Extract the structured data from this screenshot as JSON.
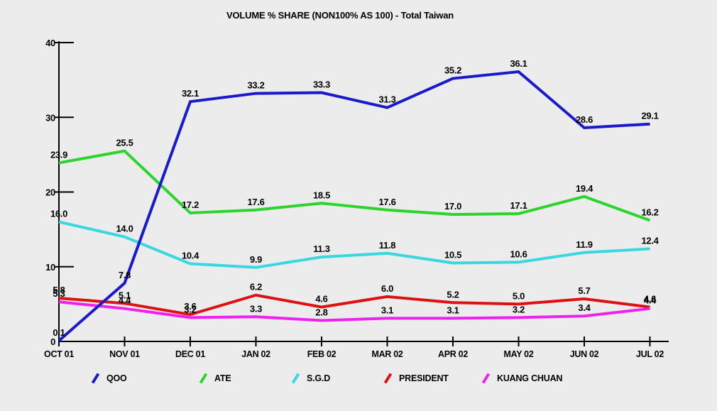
{
  "chart_data": {
    "type": "line",
    "title": "VOLUME % SHARE (NON100% AS 100) - Total Taiwan",
    "categories": [
      "OCT 01",
      "NOV 01",
      "DEC 01",
      "JAN 02",
      "FEB 02",
      "MAR 02",
      "APR 02",
      "MAY 02",
      "JUN 02",
      "JUL 02"
    ],
    "series": [
      {
        "name": "QOO",
        "color": "#1a1acd",
        "values": [
          0.1,
          7.8,
          32.1,
          33.2,
          33.3,
          31.3,
          35.2,
          36.1,
          28.6,
          29.1
        ],
        "labels": [
          "0.1",
          "7.8",
          "32.1",
          "33.2",
          "33.3",
          "31.3",
          "35.2",
          "36.1",
          "28.6",
          "29.1"
        ]
      },
      {
        "name": "ATE",
        "color": "#2bd52b",
        "values": [
          23.9,
          25.5,
          17.2,
          17.6,
          18.5,
          17.6,
          17.0,
          17.1,
          19.4,
          16.2
        ],
        "labels": [
          "23.9",
          "25.5",
          "17.2",
          "17.6",
          "18.5",
          "17.6",
          "17.0",
          "17.1",
          "19.4",
          "16.2"
        ]
      },
      {
        "name": "S.G.D",
        "color": "#38d8e0",
        "values": [
          16.0,
          14.0,
          10.4,
          9.9,
          11.3,
          11.8,
          10.5,
          10.6,
          11.9,
          12.4
        ],
        "labels": [
          "16.0",
          "14.0",
          "10.4",
          "9.9",
          "11.3",
          "11.8",
          "10.5",
          "10.6",
          "11.9",
          "12.4"
        ]
      },
      {
        "name": "PRESIDENT",
        "color": "#dd1111",
        "values": [
          5.8,
          5.1,
          3.6,
          6.2,
          4.6,
          6.0,
          5.2,
          5.0,
          5.7,
          4.6
        ],
        "labels": [
          "5.8",
          "5.1",
          "3.6",
          "6.2",
          "4.6",
          "6.0",
          "5.2",
          "5.0",
          "5.7",
          "4.6"
        ]
      },
      {
        "name": "KUANG CHUAN",
        "color": "#ee22ee",
        "values": [
          5.3,
          4.4,
          3.2,
          3.3,
          2.8,
          3.1,
          3.1,
          3.2,
          3.4,
          4.4
        ],
        "labels": [
          "5.3",
          "4.4",
          "3.2",
          "3.3",
          "2.8",
          "3.1",
          "3.1",
          "3.2",
          "3.4",
          "4.4"
        ]
      }
    ],
    "ylim": [
      0,
      40
    ],
    "yticks": [
      0,
      10,
      20,
      30,
      40
    ],
    "ytick_labels": [
      "0",
      "10",
      "20",
      "30",
      "40"
    ],
    "grid": false,
    "legend_position": "bottom",
    "axis_color": "#000000",
    "background_color": "#ececec"
  }
}
